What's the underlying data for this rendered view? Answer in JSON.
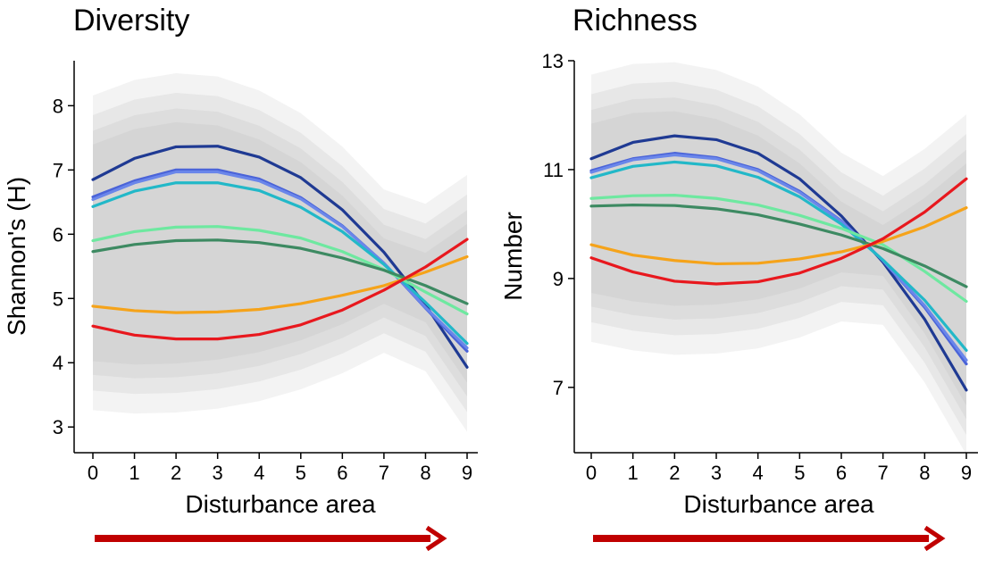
{
  "chart_data": [
    {
      "type": "line",
      "title": "Diversity",
      "xlabel": "Disturbance area",
      "ylabel": "Shannon's (H)",
      "x": [
        0,
        1,
        2,
        3,
        4,
        5,
        6,
        7,
        8,
        9
      ],
      "xticks": [
        "0",
        "1",
        "2",
        "3",
        "4",
        "5",
        "6",
        "7",
        "8",
        "9"
      ],
      "yticks": [
        "3",
        "4",
        "5",
        "6",
        "7",
        "8"
      ],
      "ylim": [
        2.6,
        8.7
      ],
      "grid": false,
      "confidence_band_color": "#c8c8c8",
      "series": [
        {
          "color": "#1f3a93",
          "values": [
            6.85,
            7.18,
            7.36,
            7.37,
            7.2,
            6.88,
            6.38,
            5.72,
            4.9,
            3.93
          ]
        },
        {
          "color": "#4a63d8",
          "values": [
            6.58,
            6.83,
            7.0,
            7.0,
            6.86,
            6.57,
            6.13,
            5.55,
            4.85,
            4.18
          ]
        },
        {
          "color": "#6a86ea",
          "values": [
            6.54,
            6.8,
            6.97,
            6.97,
            6.83,
            6.55,
            6.12,
            5.55,
            4.86,
            4.23
          ]
        },
        {
          "color": "#22b8c8",
          "values": [
            6.43,
            6.67,
            6.8,
            6.8,
            6.68,
            6.42,
            6.04,
            5.53,
            4.94,
            4.3
          ]
        },
        {
          "color": "#6ee8a0",
          "values": [
            5.9,
            6.04,
            6.11,
            6.12,
            6.06,
            5.94,
            5.73,
            5.45,
            5.1,
            4.76
          ]
        },
        {
          "color": "#3d8a62",
          "values": [
            5.73,
            5.84,
            5.9,
            5.91,
            5.87,
            5.78,
            5.63,
            5.44,
            5.2,
            4.92
          ]
        },
        {
          "color": "#f5a31a",
          "values": [
            4.88,
            4.81,
            4.78,
            4.79,
            4.83,
            4.92,
            5.05,
            5.2,
            5.41,
            5.65
          ]
        },
        {
          "color": "#e8181e",
          "values": [
            4.57,
            4.43,
            4.37,
            4.37,
            4.44,
            4.59,
            4.82,
            5.13,
            5.49,
            5.92
          ]
        }
      ]
    },
    {
      "type": "line",
      "title": "Richness",
      "xlabel": "Disturbance area",
      "ylabel": "Number",
      "x": [
        0,
        1,
        2,
        3,
        4,
        5,
        6,
        7,
        8,
        9
      ],
      "xticks": [
        "0",
        "1",
        "2",
        "3",
        "4",
        "5",
        "6",
        "7",
        "8",
        "9"
      ],
      "yticks": [
        "7",
        "9",
        "11",
        "13"
      ],
      "ylim": [
        5.8,
        13.0
      ],
      "grid": false,
      "confidence_band_color": "#c8c8c8",
      "series": [
        {
          "color": "#1f3a93",
          "values": [
            11.2,
            11.5,
            11.62,
            11.55,
            11.3,
            10.83,
            10.15,
            9.3,
            8.25,
            6.95
          ]
        },
        {
          "color": "#4a63d8",
          "values": [
            10.98,
            11.2,
            11.3,
            11.22,
            11.0,
            10.6,
            10.06,
            9.33,
            8.47,
            7.43
          ]
        },
        {
          "color": "#6a86ea",
          "values": [
            10.95,
            11.18,
            11.27,
            11.2,
            10.98,
            10.58,
            10.05,
            9.33,
            8.5,
            7.5
          ]
        },
        {
          "color": "#22b8c8",
          "values": [
            10.85,
            11.06,
            11.14,
            11.07,
            10.86,
            10.5,
            10.0,
            9.34,
            8.6,
            7.68
          ]
        },
        {
          "color": "#6ee8a0",
          "values": [
            10.47,
            10.52,
            10.53,
            10.47,
            10.35,
            10.16,
            9.92,
            9.62,
            9.13,
            8.58
          ]
        },
        {
          "color": "#3d8a62",
          "values": [
            10.33,
            10.35,
            10.34,
            10.28,
            10.17,
            10.0,
            9.8,
            9.55,
            9.23,
            8.85
          ]
        },
        {
          "color": "#f5a31a",
          "values": [
            9.62,
            9.43,
            9.33,
            9.27,
            9.28,
            9.36,
            9.49,
            9.68,
            9.95,
            10.3
          ]
        },
        {
          "color": "#e8181e",
          "values": [
            9.38,
            9.12,
            8.95,
            8.9,
            8.94,
            9.1,
            9.37,
            9.73,
            10.22,
            10.83
          ]
        }
      ]
    }
  ],
  "arrow_color": "#c00000"
}
